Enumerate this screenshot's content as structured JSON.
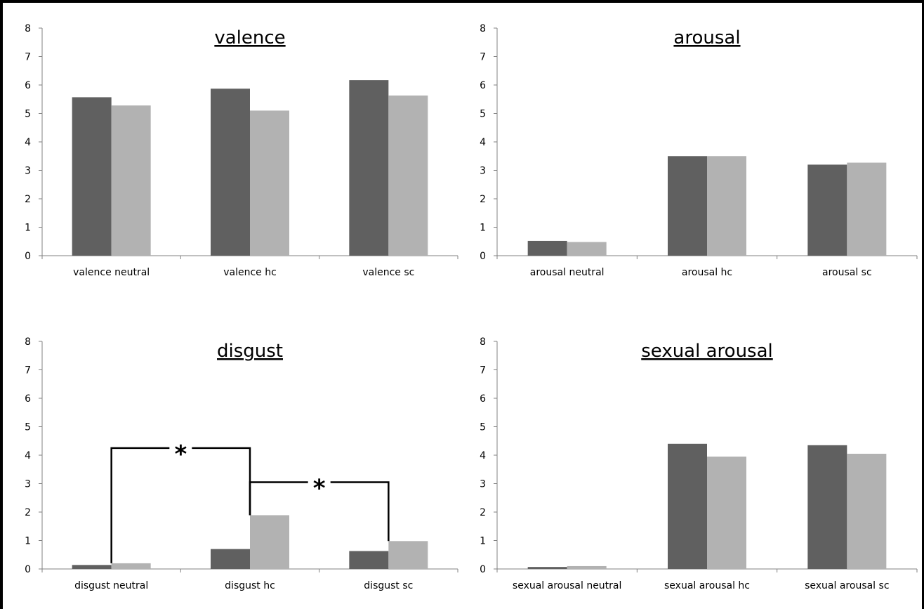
{
  "colors": {
    "series_a": "#606060",
    "series_b": "#b2b2b2",
    "axis": "#808080",
    "bracket": "#000000"
  },
  "chart_data": [
    {
      "type": "bar",
      "title": "valence",
      "categories": [
        "valence neutral",
        "valence hc",
        "valence sc"
      ],
      "series": [
        {
          "values": [
            5.57,
            5.87,
            6.17
          ]
        },
        {
          "values": [
            5.28,
            5.1,
            5.63
          ]
        }
      ],
      "ylim": [
        0,
        8
      ],
      "yticks": [
        "0",
        "1",
        "2",
        "3",
        "4",
        "5",
        "6",
        "7",
        "8"
      ],
      "grid": false
    },
    {
      "type": "bar",
      "title": "arousal",
      "categories": [
        "arousal neutral",
        "arousal hc",
        "arousal sc"
      ],
      "series": [
        {
          "values": [
            0.52,
            3.5,
            3.2
          ]
        },
        {
          "values": [
            0.48,
            3.5,
            3.27
          ]
        }
      ],
      "ylim": [
        0,
        8
      ],
      "yticks": [
        "0",
        "1",
        "2",
        "3",
        "4",
        "5",
        "6",
        "7",
        "8"
      ],
      "grid": false
    },
    {
      "type": "bar",
      "title": "disgust",
      "categories": [
        "disgust neutral",
        "disgust hc",
        "disgust sc"
      ],
      "series": [
        {
          "values": [
            0.14,
            0.7,
            0.63
          ]
        },
        {
          "values": [
            0.2,
            1.89,
            0.98
          ]
        }
      ],
      "ylim": [
        0,
        8
      ],
      "yticks": [
        "0",
        "1",
        "2",
        "3",
        "4",
        "5",
        "6",
        "7",
        "8"
      ],
      "grid": false,
      "significance": [
        {
          "from": 0,
          "to": 1,
          "level": 4.25,
          "label": "*"
        },
        {
          "from": 1,
          "to": 2,
          "level": 3.05,
          "label": "*"
        }
      ]
    },
    {
      "type": "bar",
      "title": "sexual arousal",
      "categories": [
        "sexual arousal neutral",
        "sexual arousal hc",
        "sexual arousal sc"
      ],
      "series": [
        {
          "values": [
            0.07,
            4.4,
            4.35
          ]
        },
        {
          "values": [
            0.1,
            3.95,
            4.05
          ]
        }
      ],
      "ylim": [
        0,
        8
      ],
      "yticks": [
        "0",
        "1",
        "2",
        "3",
        "4",
        "5",
        "6",
        "7",
        "8"
      ],
      "grid": false
    }
  ]
}
